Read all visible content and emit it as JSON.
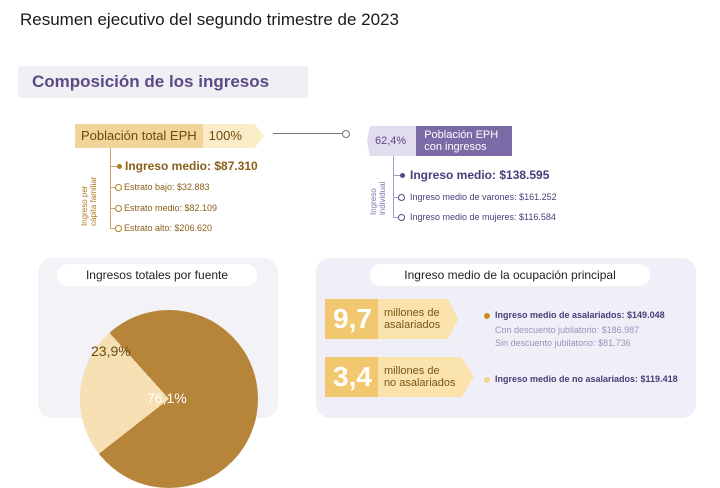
{
  "page_title": "Resumen ejecutivo del segundo trimestre de 2023",
  "section_title": "Composición de los ingresos",
  "left_block": {
    "population_label": "Población total EPH",
    "population_pct": "100%",
    "vertical_label_1": "Ingreso per",
    "vertical_label_2": "cápita familiar",
    "main_item": "Ingreso medio: $87.310",
    "sub_items": [
      "Estrato bajo: $32.883",
      "Estrato medio: $82.109",
      "Estrato alto: $206.620"
    ]
  },
  "right_block": {
    "pct": "62,4%",
    "label_line1": "Población EPH",
    "label_line2": "con ingresos",
    "vertical_label_1": "Ingreso",
    "vertical_label_2": "individual",
    "main_item": "Ingreso medio: $138.595",
    "sub_items": [
      "Ingreso medio de varones: $161.252",
      "Ingreso medio de mujeres: $116.584"
    ]
  },
  "sources_card": {
    "title": "Ingresos totales por fuente",
    "slice_small_label": "23,9%",
    "slice_large_label": "76,1%",
    "slice_small_value": 23.9,
    "slice_large_value": 76.1,
    "colors": {
      "large": "#b6853a",
      "small": "#f6dfb3"
    }
  },
  "occupation_card": {
    "title": "Ingreso medio de la ocupación principal",
    "salaried": {
      "number": "9,7",
      "unit_line1": "millones de",
      "unit_line2": "asalariados",
      "main": "Ingreso medio de asalariados: $149.048",
      "sub1": "Con descuento jubilatorio: $186.987",
      "sub2": "Sin descuento jubilatorio: $81.736"
    },
    "non_salaried": {
      "number": "3,4",
      "unit_line1": "millones de",
      "unit_line2": "no asalariados",
      "main": "Ingreso medio de no asalariados: $119.418"
    }
  }
}
